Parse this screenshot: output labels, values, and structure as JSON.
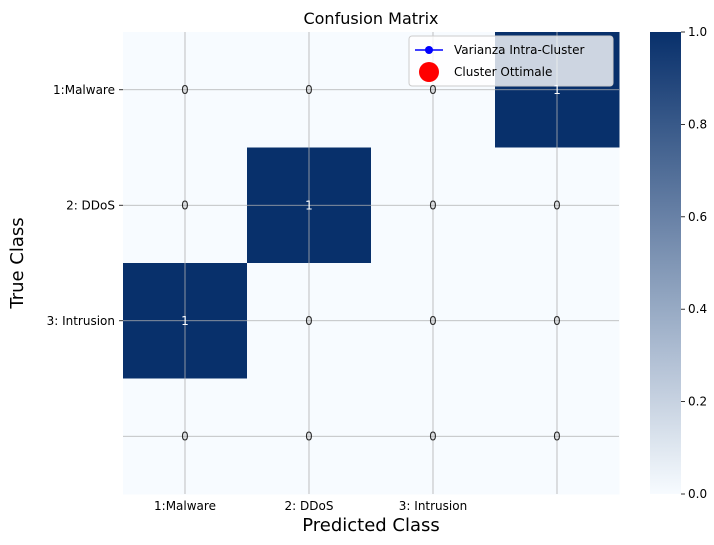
{
  "chart_data": {
    "type": "heatmap",
    "title": "Confusion Matrix",
    "xlabel": "Predicted Class",
    "ylabel": "True Class",
    "x_tick_labels": [
      "1:Malware",
      "2: DDoS",
      "3: Intrusion",
      ""
    ],
    "y_tick_labels": [
      "1:Malware",
      "2: DDoS",
      "3: Intrusion",
      ""
    ],
    "values": [
      [
        0,
        0,
        0,
        1
      ],
      [
        0,
        1,
        0,
        0
      ],
      [
        1,
        0,
        0,
        0
      ],
      [
        0,
        0,
        0,
        0
      ]
    ],
    "colormap": "Blues",
    "color_low": "#f7fbff",
    "color_high": "#08306b",
    "colorbar_range": [
      0,
      1
    ],
    "colorbar_ticks": [
      "0.0",
      "0.2",
      "0.4",
      "0.6",
      "0.8",
      "1.0"
    ],
    "grid": true,
    "legend": {
      "placement": "upper right",
      "entries": [
        {
          "label": "Varianza Intra-Cluster",
          "color": "#0000ff",
          "marker": "line-circle"
        },
        {
          "label": "Cluster Ottimale",
          "color": "#ff0000",
          "marker": "large-circle"
        }
      ]
    }
  }
}
